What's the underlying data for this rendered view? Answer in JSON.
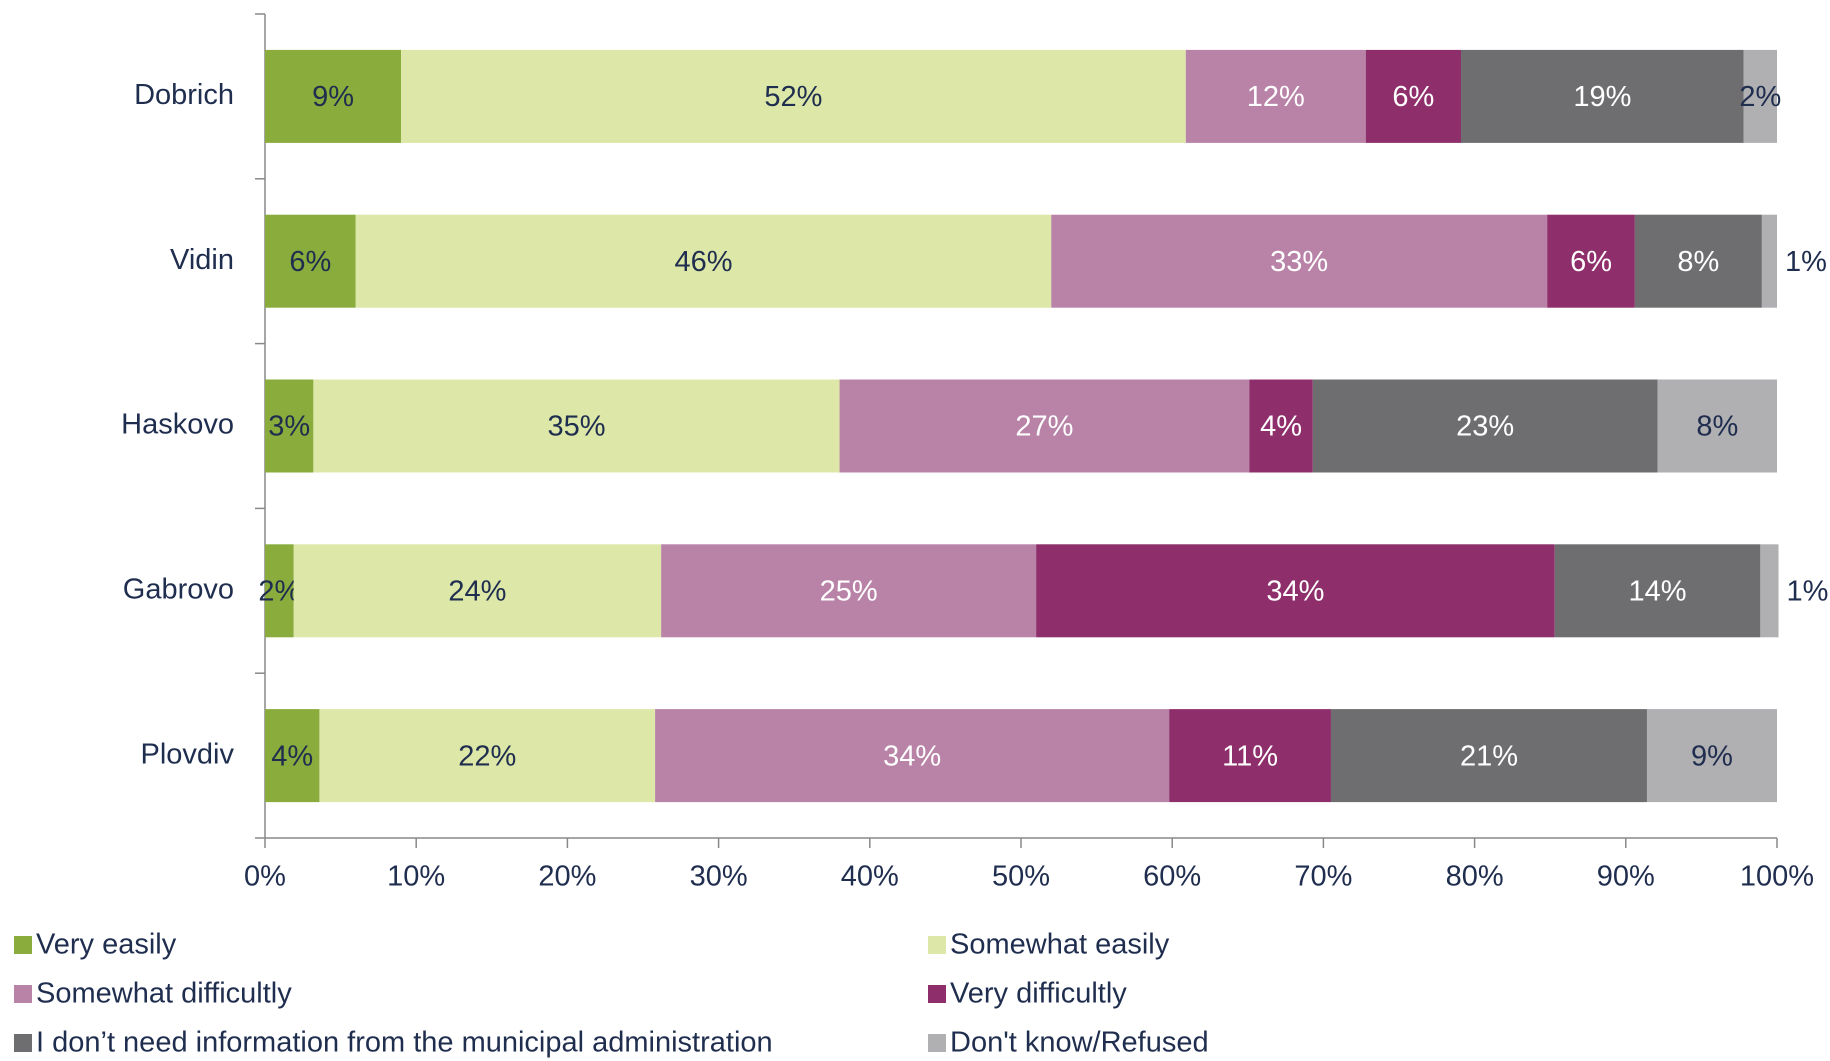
{
  "chart_data": {
    "type": "stacked_bar_horizontal",
    "categories": [
      "Dobrich",
      "Vidin",
      "Haskovo",
      "Gabrovo",
      "Plovdiv"
    ],
    "series": [
      {
        "name": "Very easily",
        "color": "#8aac3c",
        "label_color": "#1f2d4e",
        "values": [
          9.0,
          6.0,
          3.2,
          1.9,
          3.6
        ],
        "value_labels": [
          "9%",
          "6%",
          "3%",
          "2%",
          "4%"
        ]
      },
      {
        "name": "Somewhat easily",
        "color": "#dde8a8",
        "label_color": "#1f2d4e",
        "values": [
          51.9,
          46.0,
          34.8,
          24.3,
          22.2
        ],
        "value_labels": [
          "52%",
          "46%",
          "35%",
          "24%",
          "22%"
        ]
      },
      {
        "name": "Somewhat difficultly",
        "color": "#b983a8",
        "label_color": "#ffffff",
        "values": [
          11.9,
          32.8,
          27.1,
          24.8,
          34.0
        ],
        "value_labels": [
          "12%",
          "33%",
          "27%",
          "25%",
          "34%"
        ]
      },
      {
        "name": "Very difficultly",
        "color": "#8e2f6c",
        "label_color": "#ffffff",
        "values": [
          6.3,
          5.8,
          4.2,
          34.3,
          10.7
        ],
        "value_labels": [
          "6%",
          "6%",
          "4%",
          "34%",
          "11%"
        ]
      },
      {
        "name": "I don’t need information from the municipal administration",
        "color": "#6e6e70",
        "label_color": "#ffffff",
        "values": [
          18.7,
          8.4,
          22.8,
          13.6,
          20.9
        ],
        "value_labels": [
          "19%",
          "8%",
          "23%",
          "14%",
          "21%"
        ]
      },
      {
        "name": "Don't know/Refused",
        "color": "#b0afb2",
        "label_color": "#1f2d4e",
        "values": [
          2.2,
          1.0,
          7.9,
          1.2,
          8.6
        ],
        "value_labels": [
          "2%",
          "1%",
          "8%",
          "1%",
          "9%"
        ]
      }
    ],
    "xlim": [
      0,
      100
    ],
    "xticks": [
      {
        "value": 0,
        "label": "0%"
      },
      {
        "value": 10,
        "label": "10%"
      },
      {
        "value": 20,
        "label": "20%"
      },
      {
        "value": 30,
        "label": "30%"
      },
      {
        "value": 40,
        "label": "40%"
      },
      {
        "value": 50,
        "label": "50%"
      },
      {
        "value": 60,
        "label": "60%"
      },
      {
        "value": 70,
        "label": "70%"
      },
      {
        "value": 80,
        "label": "80%"
      },
      {
        "value": 90,
        "label": "90%"
      },
      {
        "value": 100,
        "label": "100%"
      }
    ],
    "legend": "bottom"
  }
}
